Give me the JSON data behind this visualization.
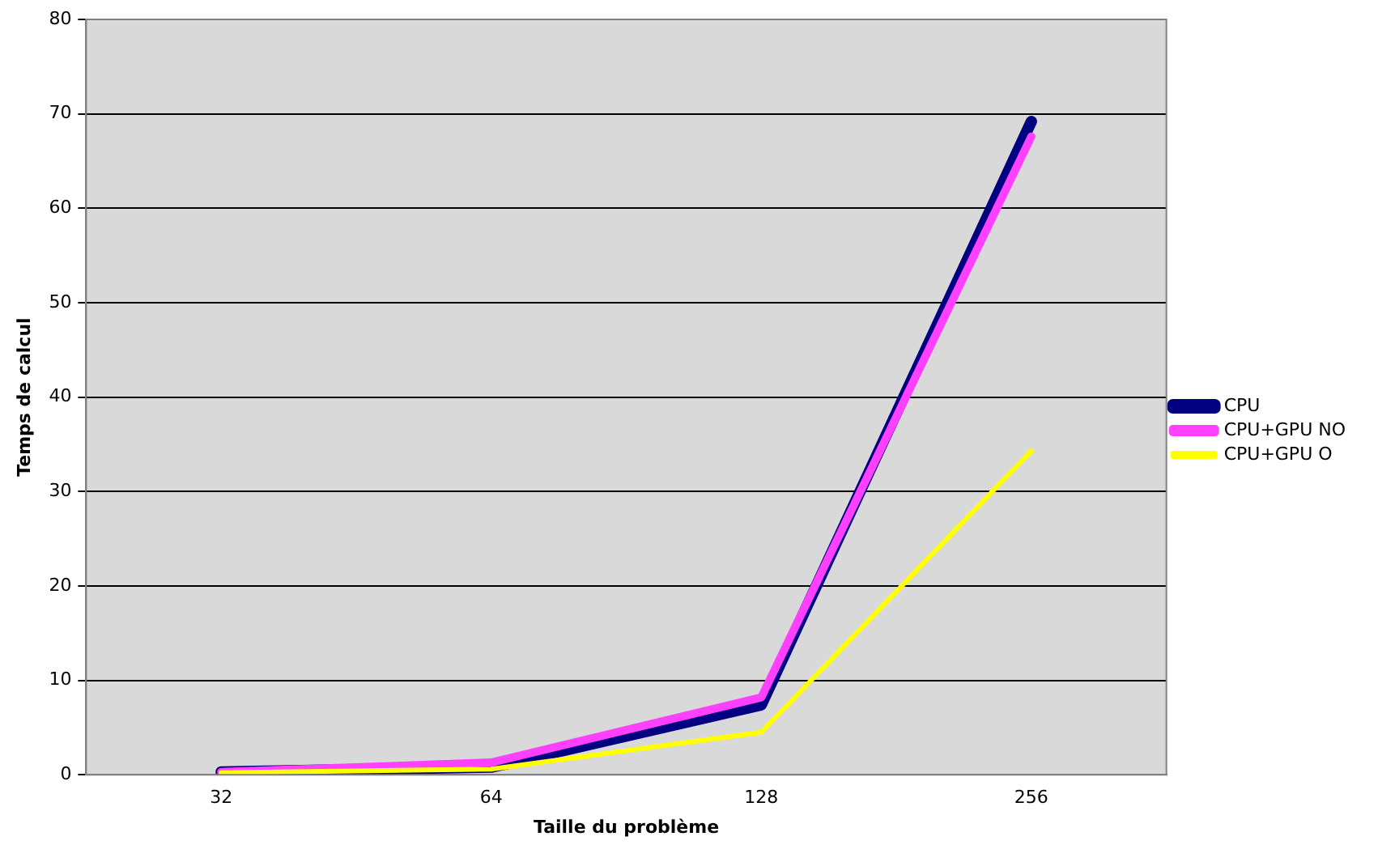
{
  "chart_data": {
    "type": "line",
    "xlabel": "Taille du problème",
    "ylabel": "Temps de calcul",
    "categories": [
      "32",
      "64",
      "128",
      "256"
    ],
    "series": [
      {
        "name": "CPU",
        "color": "#000080",
        "values": [
          0.3,
          0.8,
          7.4,
          69.2
        ]
      },
      {
        "name": "CPU+GPU NO",
        "color": "#ff40ff",
        "values": [
          0.3,
          1.3,
          8.2,
          67.6
        ]
      },
      {
        "name": "CPU+GPU O",
        "color": "#ffff00",
        "values": [
          0.2,
          0.6,
          4.5,
          34.3
        ]
      }
    ],
    "ylim": [
      0,
      80
    ],
    "yticks": [
      0,
      10,
      20,
      30,
      40,
      50,
      60,
      70,
      80
    ],
    "grid": "y",
    "legend": "right",
    "marker": "none",
    "line_style": "solid"
  }
}
